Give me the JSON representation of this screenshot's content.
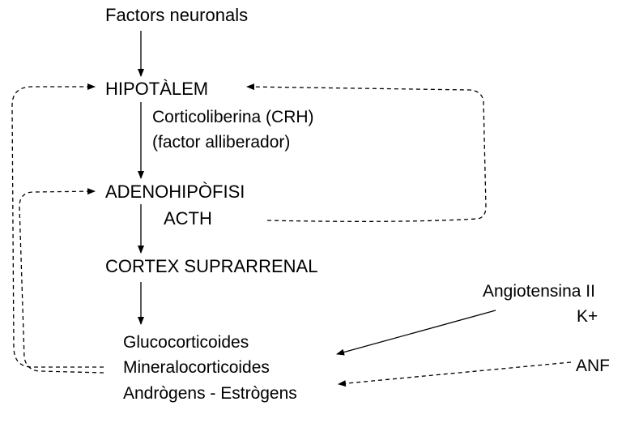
{
  "nodes": {
    "factors": "Factors neuronals",
    "hipotalem": "HIPOTÀLEM",
    "crh_line1": "Corticoliberina (CRH)",
    "crh_line2": "(factor alliberador)",
    "adeno": "ADENOHIPÒFISI",
    "acth": "ACTH",
    "cortex": "CORTEX SUPRARRENAL",
    "gluco": "Glucocorticoides",
    "mineralo": "Mineralocorticoides",
    "androgens": "Andrògens - Estrògens",
    "angiotensina": "Angiotensina II",
    "kplus": "K+",
    "anf": "ANF"
  }
}
